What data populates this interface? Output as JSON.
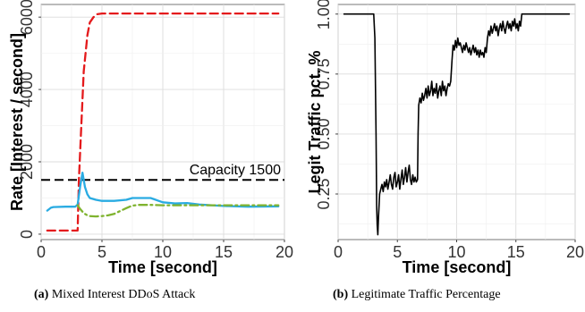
{
  "chart_data": [
    {
      "type": "line",
      "xlabel": "Time [second]",
      "ylabel": "Rate [Interest / second]",
      "xlim": [
        0,
        20
      ],
      "ylim": [
        -150,
        6350
      ],
      "xticks": [
        0,
        5,
        10,
        15,
        20
      ],
      "yticks": [
        0,
        2000,
        4000,
        6000
      ],
      "tick_labels_x": [
        "0",
        "5",
        "10",
        "15",
        "20"
      ],
      "tick_labels_y": [
        "0",
        "2000",
        "4000",
        "6000"
      ],
      "grid": true,
      "capacity": {
        "value": 1500,
        "label": "Capacity 1500"
      },
      "series": [
        {
          "color": "#e41a1c",
          "dash": "dashed",
          "x": [
            0.5,
            1,
            2,
            2.8,
            3.0,
            3.1,
            3.3,
            3.5,
            3.8,
            4.0,
            4.3,
            4.6,
            5,
            6,
            10,
            15,
            19.5
          ],
          "y": [
            100,
            100,
            100,
            100,
            100,
            1500,
            3000,
            4500,
            5500,
            5850,
            6000,
            6080,
            6100,
            6100,
            6100,
            6100,
            6100
          ]
        },
        {
          "color": "#29abe2",
          "dash": "solid",
          "x": [
            0.5,
            0.8,
            1,
            2,
            2.8,
            3.0,
            3.2,
            3.4,
            3.6,
            3.8,
            4,
            4.5,
            5,
            6,
            7,
            7.5,
            9,
            10,
            11,
            12,
            13,
            15,
            17,
            19.5
          ],
          "y": [
            650,
            730,
            750,
            760,
            760,
            820,
            1300,
            1700,
            1300,
            1100,
            1000,
            950,
            920,
            920,
            950,
            1000,
            1000,
            880,
            850,
            860,
            820,
            780,
            760,
            770
          ]
        },
        {
          "color": "#7fb32f",
          "dash": "dashdot",
          "x": [
            3.0,
            3.2,
            3.4,
            3.6,
            3.8,
            4.0,
            4.5,
            5,
            5.5,
            6,
            6.5,
            7,
            7.5,
            8,
            9,
            10,
            12,
            15,
            19.5
          ],
          "y": [
            800,
            700,
            620,
            560,
            520,
            500,
            490,
            500,
            520,
            560,
            640,
            720,
            790,
            810,
            810,
            800,
            800,
            800,
            800
          ]
        }
      ]
    },
    {
      "type": "line",
      "xlabel": "Time [second]",
      "ylabel": "Legit Traffic pct. %",
      "xlim": [
        0,
        20
      ],
      "ylim": [
        0.06,
        1.04
      ],
      "xticks": [
        0,
        5,
        10,
        15,
        20
      ],
      "yticks": [
        0.25,
        0.5,
        0.75,
        1.0
      ],
      "tick_labels_x": [
        "0",
        "5",
        "10",
        "15",
        "20"
      ],
      "tick_labels_y": [
        "0.25",
        "0.50",
        "0.75",
        "1.00"
      ],
      "grid": true,
      "series": [
        {
          "color": "#000000",
          "dash": "solid",
          "x": [
            0.5,
            1,
            2,
            3.0,
            3.1,
            3.2,
            3.25,
            3.3,
            3.35,
            3.4,
            3.5,
            3.6,
            3.7,
            3.8,
            3.9,
            4.0,
            4.1,
            4.2,
            4.3,
            4.4,
            4.5,
            4.6,
            4.7,
            4.8,
            4.9,
            5.0,
            5.1,
            5.2,
            5.3,
            5.4,
            5.5,
            5.6,
            5.7,
            5.8,
            5.9,
            6.0,
            6.1,
            6.2,
            6.3,
            6.4,
            6.5,
            6.6,
            6.7,
            6.75,
            6.8,
            6.9,
            7.0,
            7.1,
            7.2,
            7.3,
            7.4,
            7.5,
            7.6,
            7.7,
            7.8,
            7.9,
            8.0,
            8.1,
            8.2,
            8.3,
            8.4,
            8.5,
            8.6,
            8.7,
            8.8,
            8.9,
            9.0,
            9.1,
            9.2,
            9.3,
            9.4,
            9.5,
            9.6,
            9.7,
            9.8,
            9.9,
            10.0,
            10.1,
            10.2,
            10.3,
            10.4,
            10.5,
            10.6,
            10.7,
            10.8,
            10.9,
            11.0,
            11.1,
            11.2,
            11.3,
            11.4,
            11.5,
            11.6,
            11.7,
            11.8,
            11.9,
            12.0,
            12.1,
            12.2,
            12.3,
            12.4,
            12.5,
            12.6,
            12.7,
            12.8,
            12.9,
            13.0,
            13.1,
            13.2,
            13.3,
            13.4,
            13.5,
            13.6,
            13.7,
            13.8,
            13.9,
            14.0,
            14.1,
            14.2,
            14.3,
            14.4,
            14.5,
            14.6,
            14.7,
            14.8,
            14.9,
            15.0,
            15.1,
            15.2,
            15.3,
            15.4,
            15.5,
            15.6,
            16,
            18,
            19.5
          ],
          "y": [
            1.0,
            1.0,
            1.0,
            1.0,
            0.9,
            0.5,
            0.2,
            0.12,
            0.08,
            0.15,
            0.25,
            0.27,
            0.29,
            0.26,
            0.3,
            0.28,
            0.31,
            0.27,
            0.3,
            0.33,
            0.29,
            0.27,
            0.32,
            0.34,
            0.28,
            0.3,
            0.33,
            0.27,
            0.31,
            0.35,
            0.29,
            0.32,
            0.36,
            0.3,
            0.34,
            0.37,
            0.31,
            0.29,
            0.33,
            0.3,
            0.32,
            0.3,
            0.31,
            0.5,
            0.62,
            0.65,
            0.63,
            0.67,
            0.64,
            0.66,
            0.69,
            0.65,
            0.7,
            0.66,
            0.68,
            0.72,
            0.66,
            0.69,
            0.67,
            0.71,
            0.65,
            0.68,
            0.7,
            0.66,
            0.72,
            0.68,
            0.7,
            0.66,
            0.69,
            0.71,
            0.7,
            0.72,
            0.8,
            0.87,
            0.85,
            0.89,
            0.86,
            0.9,
            0.87,
            0.88,
            0.86,
            0.84,
            0.87,
            0.85,
            0.88,
            0.86,
            0.84,
            0.86,
            0.83,
            0.85,
            0.87,
            0.84,
            0.86,
            0.83,
            0.85,
            0.82,
            0.85,
            0.83,
            0.84,
            0.82,
            0.86,
            0.84,
            0.9,
            0.93,
            0.91,
            0.95,
            0.92,
            0.94,
            0.96,
            0.93,
            0.95,
            0.91,
            0.94,
            0.96,
            0.93,
            0.97,
            0.94,
            0.92,
            0.95,
            0.97,
            0.94,
            0.96,
            0.93,
            0.97,
            0.95,
            0.98,
            0.94,
            0.96,
            0.93,
            0.97,
            0.95,
            1.0,
            1.0,
            1.0,
            1.0,
            1.0
          ]
        }
      ]
    }
  ],
  "captions": [
    {
      "label": "(a)",
      "text": "Mixed Interest DDoS Attack"
    },
    {
      "label": "(b)",
      "text": "Legitimate Traffic Percentage"
    }
  ]
}
